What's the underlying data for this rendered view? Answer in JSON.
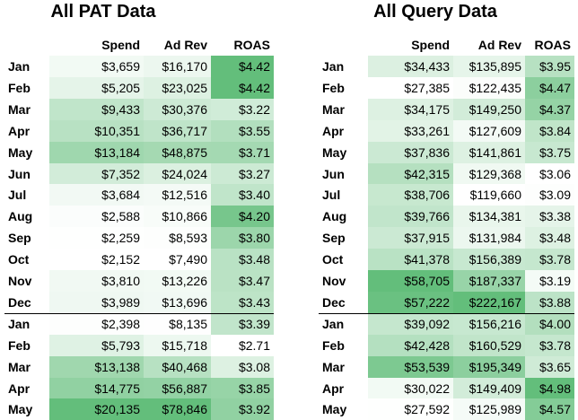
{
  "tables": [
    {
      "title": "All PAT Data",
      "columns": [
        "Spend",
        "Ad Rev",
        "ROAS"
      ],
      "rows": [
        [
          "Jan",
          "$3,659",
          "$16,170",
          "$4.42"
        ],
        [
          "Feb",
          "$5,205",
          "$23,025",
          "$4.42"
        ],
        [
          "Mar",
          "$9,433",
          "$30,376",
          "$3.22"
        ],
        [
          "Apr",
          "$10,351",
          "$36,717",
          "$3.55"
        ],
        [
          "May",
          "$13,184",
          "$48,875",
          "$3.71"
        ],
        [
          "Jun",
          "$7,352",
          "$24,024",
          "$3.27"
        ],
        [
          "Jul",
          "$3,684",
          "$12,516",
          "$3.40"
        ],
        [
          "Aug",
          "$2,588",
          "$10,866",
          "$4.20"
        ],
        [
          "Sep",
          "$2,259",
          "$8,593",
          "$3.80"
        ],
        [
          "Oct",
          "$2,152",
          "$7,490",
          "$3.48"
        ],
        [
          "Nov",
          "$3,810",
          "$13,226",
          "$3.47"
        ],
        [
          "Dec",
          "$3,989",
          "$13,696",
          "$3.43"
        ],
        [
          "Jan",
          "$2,398",
          "$8,135",
          "$3.39"
        ],
        [
          "Feb",
          "$5,793",
          "$15,718",
          "$2.71"
        ],
        [
          "Mar",
          "$13,138",
          "$40,468",
          "$3.08"
        ],
        [
          "Apr",
          "$14,775",
          "$56,887",
          "$3.85"
        ],
        [
          "May",
          "$20,135",
          "$78,846",
          "$3.92"
        ]
      ]
    },
    {
      "title": "All Query Data",
      "columns": [
        "Spend",
        "Ad Rev",
        "ROAS"
      ],
      "rows": [
        [
          "Jan",
          "$34,433",
          "$135,895",
          "$3.95"
        ],
        [
          "Feb",
          "$27,385",
          "$122,435",
          "$4.47"
        ],
        [
          "Mar",
          "$34,175",
          "$149,250",
          "$4.37"
        ],
        [
          "Apr",
          "$33,261",
          "$127,609",
          "$3.84"
        ],
        [
          "May",
          "$37,836",
          "$141,861",
          "$3.75"
        ],
        [
          "Jun",
          "$42,315",
          "$129,368",
          "$3.06"
        ],
        [
          "Jul",
          "$38,706",
          "$119,660",
          "$3.09"
        ],
        [
          "Aug",
          "$39,766",
          "$134,381",
          "$3.38"
        ],
        [
          "Sep",
          "$37,915",
          "$131,984",
          "$3.48"
        ],
        [
          "Oct",
          "$41,378",
          "$156,389",
          "$3.78"
        ],
        [
          "Nov",
          "$58,705",
          "$187,337",
          "$3.19"
        ],
        [
          "Dec",
          "$57,222",
          "$222,167",
          "$3.88"
        ],
        [
          "Jan",
          "$39,092",
          "$156,216",
          "$4.00"
        ],
        [
          "Feb",
          "$42,428",
          "$160,529",
          "$3.78"
        ],
        [
          "Mar",
          "$53,539",
          "$195,349",
          "$3.65"
        ],
        [
          "Apr",
          "$30,022",
          "$149,409",
          "$4.98"
        ],
        [
          "May",
          "$27,592",
          "$125,989",
          "$4.57"
        ]
      ]
    }
  ]
}
